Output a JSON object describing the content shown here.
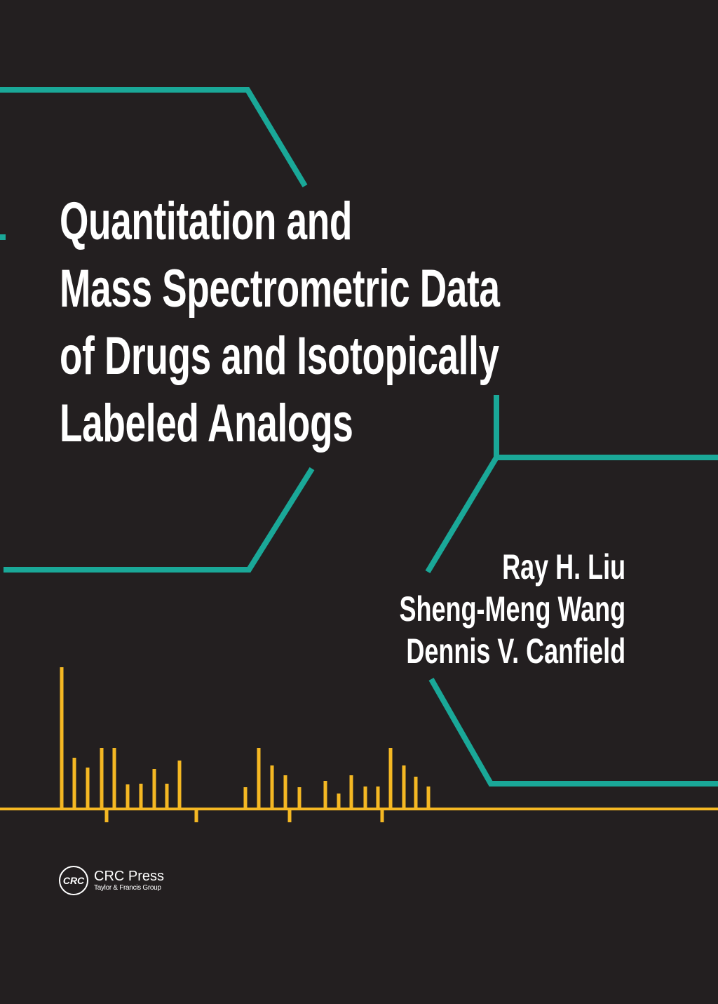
{
  "cover": {
    "title_lines": [
      "Quantitation and",
      "Mass Spectrometric Data",
      "of Drugs and Isotopically",
      "Labeled Analogs"
    ],
    "authors": [
      "Ray H. Liu",
      "Sheng-Meng Wang",
      "Dennis V. Canfield"
    ],
    "publisher": {
      "logo_mark": "CRC",
      "name": "CRC Press",
      "group": "Taylor & Francis Group"
    }
  },
  "colors": {
    "background": "#231f20",
    "teal": "#1aa898",
    "spectrum": "#f5b823",
    "text": "#ffffff"
  }
}
